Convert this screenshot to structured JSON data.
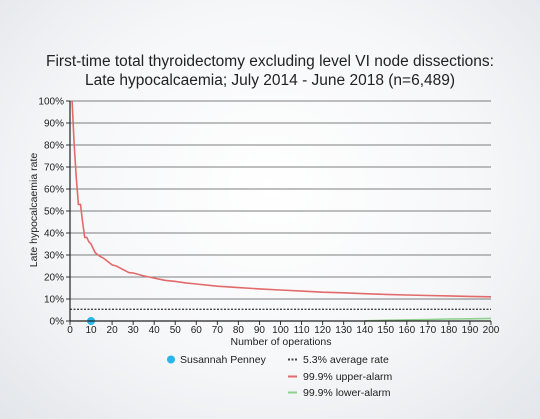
{
  "chart_data": {
    "type": "line",
    "title": "First-time total thyroidectomy excluding level VI node dissections:",
    "subtitle": "Late hypocalcaemia; July 2014 - June 2018 (n=6,489)",
    "xlabel": "Number of operations",
    "ylabel": "Late hypocalcaemia rate",
    "xlim": [
      0,
      200
    ],
    "ylim": [
      0,
      100
    ],
    "x_ticks": [
      0,
      10,
      20,
      30,
      40,
      50,
      60,
      70,
      80,
      90,
      100,
      110,
      120,
      130,
      140,
      150,
      160,
      170,
      180,
      190,
      200
    ],
    "y_ticks": [
      0,
      10,
      20,
      30,
      40,
      50,
      60,
      70,
      80,
      90,
      100
    ],
    "y_tick_labels": [
      "0%",
      "10%",
      "20%",
      "30%",
      "40%",
      "50%",
      "60%",
      "70%",
      "80%",
      "90%",
      "100%"
    ],
    "grid": "horizontal",
    "series": [
      {
        "name": "5.3% average rate",
        "color": "#444444",
        "style": "dashed",
        "x": [
          0,
          200
        ],
        "y": [
          5.3,
          5.3
        ]
      },
      {
        "name": "99.9% upper-alarm",
        "color": "#e36a6a",
        "style": "solid",
        "x": [
          1,
          2,
          3,
          4,
          5,
          6,
          7,
          8,
          9,
          10,
          12,
          14,
          16,
          18,
          20,
          22,
          24,
          26,
          28,
          30,
          35,
          40,
          45,
          50,
          55,
          60,
          70,
          80,
          90,
          100,
          110,
          120,
          130,
          140,
          150,
          160,
          170,
          180,
          190,
          200
        ],
        "y": [
          100,
          80,
          65,
          53,
          53,
          45,
          38,
          38,
          36,
          35,
          31,
          29.5,
          28.5,
          27,
          25.5,
          25,
          24,
          23,
          22,
          21.8,
          20.5,
          19.5,
          18.5,
          18,
          17.3,
          16.8,
          15.8,
          15.2,
          14.6,
          14.1,
          13.6,
          13.1,
          12.8,
          12.4,
          12.1,
          11.8,
          11.6,
          11.4,
          11.2,
          11
        ]
      },
      {
        "name": "99.9% lower-alarm",
        "color": "#8fd18f",
        "style": "solid",
        "x": [
          140,
          150,
          160,
          170,
          180,
          190,
          200
        ],
        "y": [
          0.1,
          0.3,
          0.5,
          0.7,
          0.9,
          1.0,
          1.2
        ]
      }
    ],
    "points": [
      {
        "name": "Susannah Penney",
        "color": "#2bb5e8",
        "x": 10,
        "y": 0
      }
    ],
    "legend": {
      "placement": "bottom",
      "items": [
        {
          "label": "Susannah Penney",
          "color": "#2bb5e8",
          "marker": "circle"
        },
        {
          "label": "5.3% average rate",
          "color": "#444444",
          "marker": "dash"
        },
        {
          "label": "99.9% upper-alarm",
          "color": "#e36a6a",
          "marker": "line"
        },
        {
          "label": "99.9% lower-alarm",
          "color": "#8fd18f",
          "marker": "line"
        }
      ]
    }
  }
}
